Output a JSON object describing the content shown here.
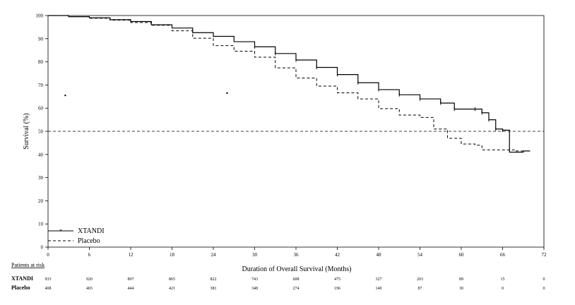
{
  "chart_data": {
    "type": "line",
    "xlabel": "Duration of Overall Survival (Months)",
    "ylabel": "Survival (%)",
    "xlim": [
      0,
      72
    ],
    "ylim": [
      0,
      100
    ],
    "x_ticks": [
      0,
      6,
      12,
      18,
      24,
      30,
      36,
      42,
      48,
      54,
      60,
      66,
      72
    ],
    "y_ticks": [
      0,
      10,
      20,
      30,
      40,
      50,
      60,
      70,
      80,
      90,
      100
    ],
    "reference_line": {
      "y": 50,
      "style": "dashed"
    },
    "legend": {
      "placement": "bottom-left"
    },
    "series": [
      {
        "name": "XTANDI",
        "style": "solid",
        "x": [
          0,
          3,
          6,
          9,
          12,
          15,
          18,
          21,
          24,
          27,
          30,
          33,
          36,
          39,
          42,
          45,
          48,
          51,
          54,
          57,
          59,
          62,
          63,
          64,
          65,
          66,
          67,
          68,
          69,
          70
        ],
        "y": [
          100,
          99.5,
          99,
          98.2,
          97.4,
          96,
          94.6,
          92.6,
          91,
          88.7,
          86.5,
          83.6,
          80.8,
          77.6,
          74.5,
          71,
          68,
          65.8,
          64,
          62.2,
          59.6,
          59.6,
          58,
          55,
          51,
          50.5,
          41,
          41,
          41.5,
          41.5
        ]
      },
      {
        "name": "Placebo",
        "style": "dashed",
        "x": [
          0,
          3,
          6,
          9,
          12,
          15,
          18,
          21,
          24,
          27,
          30,
          33,
          36,
          39,
          42,
          45,
          48,
          51,
          54,
          56,
          58,
          60,
          62,
          63,
          65,
          67,
          68,
          69
        ],
        "y": [
          100,
          99.5,
          98.8,
          98,
          97,
          95.8,
          93.4,
          90.2,
          87,
          84.6,
          82,
          77.4,
          73,
          69.5,
          66.6,
          64,
          59.8,
          57,
          56,
          51,
          47,
          44.5,
          44,
          42,
          42,
          42,
          41.5,
          41.5
        ]
      }
    ],
    "scattered_marks": [
      {
        "x": 2.5,
        "y": 65.5
      },
      {
        "x": 26,
        "y": 66.5
      }
    ]
  },
  "risk_table": {
    "title": "Patients at risk",
    "rows": [
      {
        "label": "XTANDI",
        "values": [
          "933",
          "920",
          "897",
          "865",
          "822",
          "743",
          "608",
          "475",
          "327",
          "203",
          "89",
          "15",
          "0"
        ]
      },
      {
        "label": "Placebo",
        "values": [
          "408",
          "465",
          "444",
          "421",
          "381",
          "348",
          "274",
          "196",
          "140",
          "87",
          "30",
          "0",
          "0"
        ]
      }
    ]
  }
}
